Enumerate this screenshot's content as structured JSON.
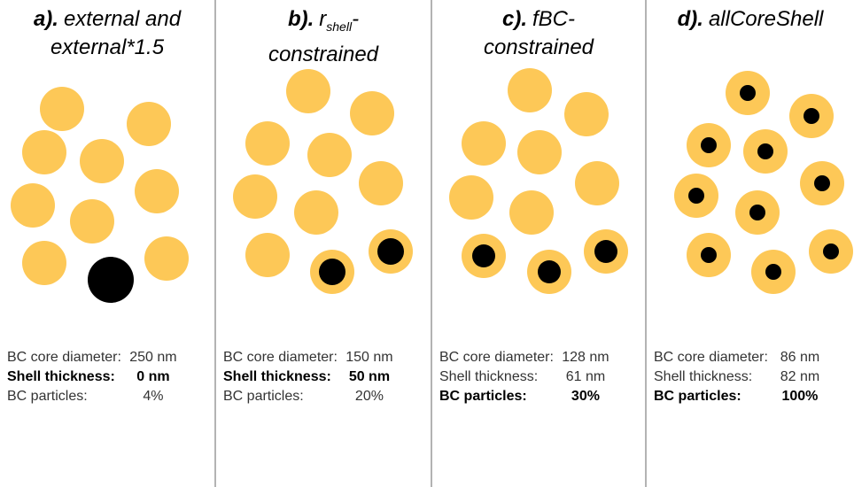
{
  "panels": [
    {
      "label": "a).",
      "title": "external and external*1.5",
      "rows": [
        {
          "label": "BC core diameter:",
          "value": "250 nm"
        },
        {
          "label": "Shell thickness:",
          "value": "0 nm"
        },
        {
          "label": "BC particles:",
          "value": "4%"
        }
      ]
    },
    {
      "label": "b).",
      "title": "r",
      "title_sub": "shell",
      "title_suffix": "-constrained",
      "rows": [
        {
          "label": "BC core diameter:",
          "value": "150 nm"
        },
        {
          "label": "Shell thickness:",
          "value": "50 nm"
        },
        {
          "label": "BC particles:",
          "value": "20%"
        }
      ]
    },
    {
      "label": "c).",
      "title": "fBC-constrained",
      "rows": [
        {
          "label": "BC core diameter:",
          "value": "128 nm"
        },
        {
          "label": "Shell thickness:",
          "value": "61 nm"
        },
        {
          "label": "BC particles:",
          "value": "30%"
        }
      ]
    },
    {
      "label": "d).",
      "title": "allCoreShell",
      "rows": [
        {
          "label": "BC core diameter:",
          "value": "86 nm"
        },
        {
          "label": "Shell thickness:",
          "value": "82 nm"
        },
        {
          "label": "BC particles:",
          "value": "100%"
        }
      ]
    }
  ]
}
